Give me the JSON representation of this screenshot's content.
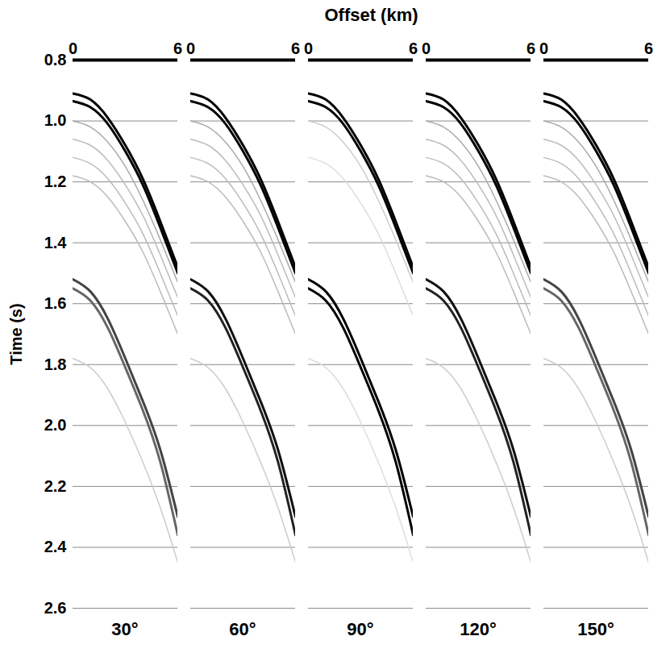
{
  "xlabel": "Offset (km)",
  "chart_data": [
    {
      "type": "line",
      "title": "30°",
      "ylabel": "Time (s)",
      "xlim": [
        0,
        6
      ],
      "xticks": [
        0,
        6
      ],
      "ylim": [
        0.8,
        2.6
      ],
      "yticks": [
        0.8,
        {
          "value": 1,
          "label": "1.0"
        },
        1.2,
        1.4,
        1.6,
        1.8,
        {
          "value": 2,
          "label": "2.0"
        },
        2.2,
        2.4,
        2.6
      ],
      "grid": true,
      "x": [
        0,
        1,
        2,
        3,
        4,
        5,
        6
      ],
      "series": [
        {
          "color": "#bbbbbb",
          "values": [
            1.18,
            1.2,
            1.25,
            1.33,
            1.43,
            1.56,
            1.7
          ]
        },
        {
          "color": "#bbbbbb",
          "values": [
            1.12,
            1.14,
            1.19,
            1.27,
            1.37,
            1.5,
            1.64
          ]
        },
        {
          "color": "#bbbbbb",
          "values": [
            1.06,
            1.08,
            1.13,
            1.21,
            1.31,
            1.44,
            1.58
          ]
        },
        {
          "color": "#aaaaaa",
          "values": [
            1.0,
            1.02,
            1.07,
            1.15,
            1.26,
            1.39,
            1.53
          ]
        },
        {
          "color": "#000000",
          "values": [
            0.91,
            0.93,
            0.99,
            1.08,
            1.19,
            1.33,
            1.48
          ]
        },
        {
          "color": "#000000",
          "values": [
            0.935,
            0.955,
            1.01,
            1.1,
            1.21,
            1.35,
            1.5
          ]
        },
        {
          "color": "#cccccc",
          "values": [
            1.78,
            1.81,
            1.88,
            1.99,
            2.12,
            2.27,
            2.45
          ]
        },
        {
          "color": "#444444",
          "values": [
            1.52,
            1.56,
            1.65,
            1.78,
            1.92,
            2.08,
            2.3
          ]
        },
        {
          "color": "#666666",
          "values": [
            1.55,
            1.59,
            1.68,
            1.81,
            1.95,
            2.12,
            2.36
          ]
        }
      ]
    },
    {
      "type": "line",
      "title": "60°",
      "xlim": [
        0,
        6
      ],
      "xticks": [
        0,
        6
      ],
      "tick_labels": "x",
      "ylim": [
        0.8,
        2.6
      ],
      "yticks": [
        0.8,
        {
          "value": 1,
          "label": "1.0"
        },
        1.2,
        1.4,
        1.6,
        1.8,
        {
          "value": 2,
          "label": "2.0"
        },
        2.2,
        2.4,
        2.6
      ],
      "grid": true,
      "x": [
        0,
        1,
        2,
        3,
        4,
        5,
        6
      ],
      "series": [
        {
          "color": "#bbbbbb",
          "values": [
            1.18,
            1.2,
            1.25,
            1.33,
            1.43,
            1.56,
            1.7
          ]
        },
        {
          "color": "#bbbbbb",
          "values": [
            1.12,
            1.14,
            1.19,
            1.27,
            1.37,
            1.5,
            1.64
          ]
        },
        {
          "color": "#bbbbbb",
          "values": [
            1.06,
            1.08,
            1.13,
            1.21,
            1.31,
            1.44,
            1.58
          ]
        },
        {
          "color": "#aaaaaa",
          "values": [
            1.0,
            1.02,
            1.07,
            1.15,
            1.26,
            1.39,
            1.53
          ]
        },
        {
          "color": "#000000",
          "values": [
            0.91,
            0.93,
            0.99,
            1.08,
            1.19,
            1.33,
            1.48
          ]
        },
        {
          "color": "#000000",
          "values": [
            0.935,
            0.955,
            1.01,
            1.1,
            1.21,
            1.35,
            1.5
          ]
        },
        {
          "color": "#cccccc",
          "values": [
            1.78,
            1.81,
            1.88,
            1.99,
            2.12,
            2.27,
            2.45
          ]
        },
        {
          "color": "#111111",
          "values": [
            1.52,
            1.56,
            1.65,
            1.78,
            1.92,
            2.08,
            2.3
          ]
        },
        {
          "color": "#222222",
          "values": [
            1.55,
            1.59,
            1.68,
            1.81,
            1.95,
            2.12,
            2.36
          ]
        }
      ]
    },
    {
      "type": "line",
      "title": "90°",
      "xlim": [
        0,
        6
      ],
      "xticks": [
        0,
        6
      ],
      "tick_labels": "x",
      "ylim": [
        0.8,
        2.6
      ],
      "yticks": [
        0.8,
        {
          "value": 1,
          "label": "1.0"
        },
        1.2,
        1.4,
        1.6,
        1.8,
        {
          "value": 2,
          "label": "2.0"
        },
        2.2,
        2.4,
        2.6
      ],
      "grid": true,
      "x": [
        0,
        1,
        2,
        3,
        4,
        5,
        6
      ],
      "series": [
        {
          "color": "#dddddd",
          "values": [
            1.12,
            1.14,
            1.19,
            1.27,
            1.37,
            1.5,
            1.64
          ]
        },
        {
          "color": "#cccccc",
          "values": [
            1.0,
            1.02,
            1.07,
            1.15,
            1.26,
            1.39,
            1.53
          ]
        },
        {
          "color": "#000000",
          "values": [
            0.91,
            0.93,
            0.99,
            1.08,
            1.19,
            1.33,
            1.48
          ]
        },
        {
          "color": "#000000",
          "values": [
            0.935,
            0.955,
            1.01,
            1.1,
            1.21,
            1.35,
            1.5
          ]
        },
        {
          "color": "#dddddd",
          "values": [
            1.78,
            1.81,
            1.88,
            1.99,
            2.12,
            2.27,
            2.45
          ]
        },
        {
          "color": "#000000",
          "values": [
            1.52,
            1.56,
            1.65,
            1.78,
            1.92,
            2.08,
            2.3
          ]
        },
        {
          "color": "#000000",
          "values": [
            1.55,
            1.59,
            1.68,
            1.81,
            1.95,
            2.12,
            2.36
          ]
        }
      ]
    },
    {
      "type": "line",
      "title": "120°",
      "xlim": [
        0,
        6
      ],
      "xticks": [
        0,
        6
      ],
      "tick_labels": "x",
      "ylim": [
        0.8,
        2.6
      ],
      "yticks": [
        0.8,
        {
          "value": 1,
          "label": "1.0"
        },
        1.2,
        1.4,
        1.6,
        1.8,
        {
          "value": 2,
          "label": "2.0"
        },
        2.2,
        2.4,
        2.6
      ],
      "grid": true,
      "x": [
        0,
        1,
        2,
        3,
        4,
        5,
        6
      ],
      "series": [
        {
          "color": "#bbbbbb",
          "values": [
            1.18,
            1.2,
            1.25,
            1.33,
            1.43,
            1.56,
            1.7
          ]
        },
        {
          "color": "#bbbbbb",
          "values": [
            1.12,
            1.14,
            1.19,
            1.27,
            1.37,
            1.5,
            1.64
          ]
        },
        {
          "color": "#bbbbbb",
          "values": [
            1.06,
            1.08,
            1.13,
            1.21,
            1.31,
            1.44,
            1.58
          ]
        },
        {
          "color": "#aaaaaa",
          "values": [
            1.0,
            1.02,
            1.07,
            1.15,
            1.26,
            1.39,
            1.53
          ]
        },
        {
          "color": "#000000",
          "values": [
            0.91,
            0.93,
            0.99,
            1.08,
            1.19,
            1.33,
            1.48
          ]
        },
        {
          "color": "#000000",
          "values": [
            0.935,
            0.955,
            1.01,
            1.1,
            1.21,
            1.35,
            1.5
          ]
        },
        {
          "color": "#cccccc",
          "values": [
            1.78,
            1.81,
            1.88,
            1.99,
            2.12,
            2.27,
            2.45
          ]
        },
        {
          "color": "#111111",
          "values": [
            1.52,
            1.56,
            1.65,
            1.78,
            1.92,
            2.08,
            2.3
          ]
        },
        {
          "color": "#222222",
          "values": [
            1.55,
            1.59,
            1.68,
            1.81,
            1.95,
            2.12,
            2.36
          ]
        }
      ]
    },
    {
      "type": "line",
      "title": "150°",
      "xlim": [
        0,
        6
      ],
      "xticks": [
        0,
        6
      ],
      "tick_labels": "x",
      "ylim": [
        0.8,
        2.6
      ],
      "yticks": [
        0.8,
        {
          "value": 1,
          "label": "1.0"
        },
        1.2,
        1.4,
        1.6,
        1.8,
        {
          "value": 2,
          "label": "2.0"
        },
        2.2,
        2.4,
        2.6
      ],
      "grid": true,
      "x": [
        0,
        1,
        2,
        3,
        4,
        5,
        6
      ],
      "series": [
        {
          "color": "#bbbbbb",
          "values": [
            1.18,
            1.2,
            1.25,
            1.33,
            1.43,
            1.56,
            1.7
          ]
        },
        {
          "color": "#bbbbbb",
          "values": [
            1.12,
            1.14,
            1.19,
            1.27,
            1.37,
            1.5,
            1.64
          ]
        },
        {
          "color": "#bbbbbb",
          "values": [
            1.06,
            1.08,
            1.13,
            1.21,
            1.31,
            1.44,
            1.58
          ]
        },
        {
          "color": "#aaaaaa",
          "values": [
            1.0,
            1.02,
            1.07,
            1.15,
            1.26,
            1.39,
            1.53
          ]
        },
        {
          "color": "#000000",
          "values": [
            0.91,
            0.93,
            0.99,
            1.08,
            1.19,
            1.33,
            1.48
          ]
        },
        {
          "color": "#000000",
          "values": [
            0.935,
            0.955,
            1.01,
            1.1,
            1.21,
            1.35,
            1.5
          ]
        },
        {
          "color": "#cccccc",
          "values": [
            1.78,
            1.81,
            1.88,
            1.99,
            2.12,
            2.27,
            2.45
          ]
        },
        {
          "color": "#444444",
          "values": [
            1.52,
            1.56,
            1.65,
            1.78,
            1.92,
            2.08,
            2.3
          ]
        },
        {
          "color": "#666666",
          "values": [
            1.55,
            1.59,
            1.68,
            1.81,
            1.95,
            2.12,
            2.36
          ]
        }
      ]
    }
  ]
}
